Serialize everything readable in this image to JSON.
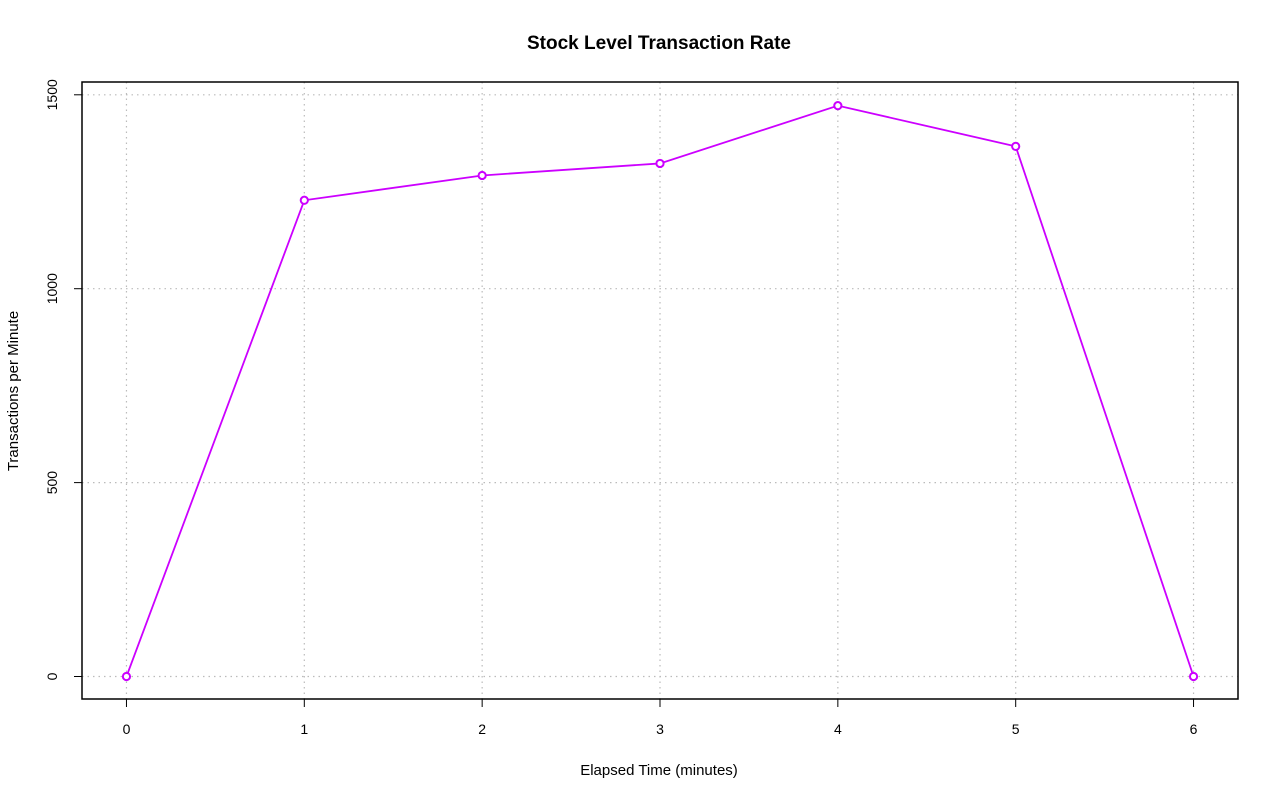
{
  "chart_data": {
    "type": "line",
    "title": "Stock Level Transaction Rate",
    "xlabel": "Elapsed Time (minutes)",
    "ylabel": "Transactions per Minute",
    "x": [
      0,
      1,
      2,
      3,
      4,
      5,
      6
    ],
    "series": [
      {
        "values": [
          0,
          1228,
          1292,
          1323,
          1472,
          1367,
          0
        ]
      }
    ],
    "xlim": [
      -0.25,
      6.25
    ],
    "ylim": [
      -58,
      1533
    ],
    "xticks": [
      "0",
      "1",
      "2",
      "3",
      "4",
      "5",
      "6"
    ],
    "yticks": [
      "0",
      "500",
      "1000",
      "1500"
    ],
    "grid": true,
    "legend": "none",
    "colors": {
      "line": "#cc00ff",
      "axis": "#000000",
      "grid": "#bbbbbb"
    }
  }
}
